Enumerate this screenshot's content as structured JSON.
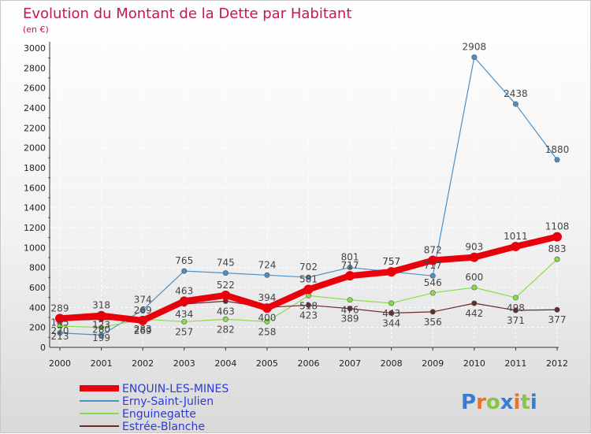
{
  "chart_data": {
    "type": "line",
    "title": "Evolution du Montant de la Dette par Habitant",
    "subtitle": "(en €)",
    "xlabel": "",
    "ylabel": "",
    "ylim": [
      0,
      3000
    ],
    "yticks": [
      0,
      200,
      400,
      600,
      800,
      1000,
      1200,
      1400,
      1600,
      1800,
      2000,
      2200,
      2400,
      2600,
      2800,
      3000
    ],
    "x": [
      "2000",
      "2001",
      "2002",
      "2003",
      "2004",
      "2005",
      "2006",
      "2007",
      "2008",
      "2009",
      "2010",
      "2011",
      "2012"
    ],
    "grid": true,
    "legend_position": "bottom-left",
    "series": [
      {
        "name": "ENQUIN-LES-MINES",
        "color": "#e8000b",
        "values": [
          289,
          318,
          269,
          463,
          522,
          394,
          581,
          717,
          757,
          872,
          903,
          1011,
          1108
        ]
      },
      {
        "name": "Erny-Saint-Julien",
        "color": "#4a90c8",
        "values": [
          145,
          123,
          374,
          765,
          745,
          724,
          702,
          801,
          757,
          717,
          2908,
          2438,
          1880
        ]
      },
      {
        "name": "Enguinegatte",
        "color": "#88dd4a",
        "values": [
          213,
          199,
          283,
          257,
          282,
          258,
          518,
          476,
          443,
          546,
          600,
          498,
          883
        ]
      },
      {
        "name": "Estrée-Blanche",
        "color": "#6b2a2a",
        "values": [
          270,
          280,
          269,
          434,
          463,
          400,
          423,
          389,
          344,
          356,
          442,
          371,
          377
        ]
      }
    ],
    "data_labels": [
      [
        "289",
        "318",
        "269",
        "463",
        "522",
        "394",
        "581",
        "717",
        "757",
        "872",
        "903",
        "1011",
        "1108"
      ],
      [
        "145",
        "123",
        "374",
        "765",
        "745",
        "724",
        "702",
        "801",
        "757",
        "717",
        "2908",
        "2438",
        "1880"
      ],
      [
        "213",
        "199",
        "283",
        "257",
        "282",
        "258",
        "518",
        "476",
        "443",
        "546",
        "600",
        "498",
        "883"
      ],
      [
        "270",
        "280",
        "269",
        "434",
        "463",
        "400",
        "423",
        "389",
        "344",
        "356",
        "442",
        "371",
        "377"
      ]
    ]
  },
  "brand": {
    "logo_text": "Proxiti",
    "letter_colors": [
      "#3a7bd5",
      "#e8732a",
      "#8bc34a",
      "#3a7bd5",
      "#e8732a",
      "#8bc34a",
      "#3a7bd5"
    ]
  }
}
